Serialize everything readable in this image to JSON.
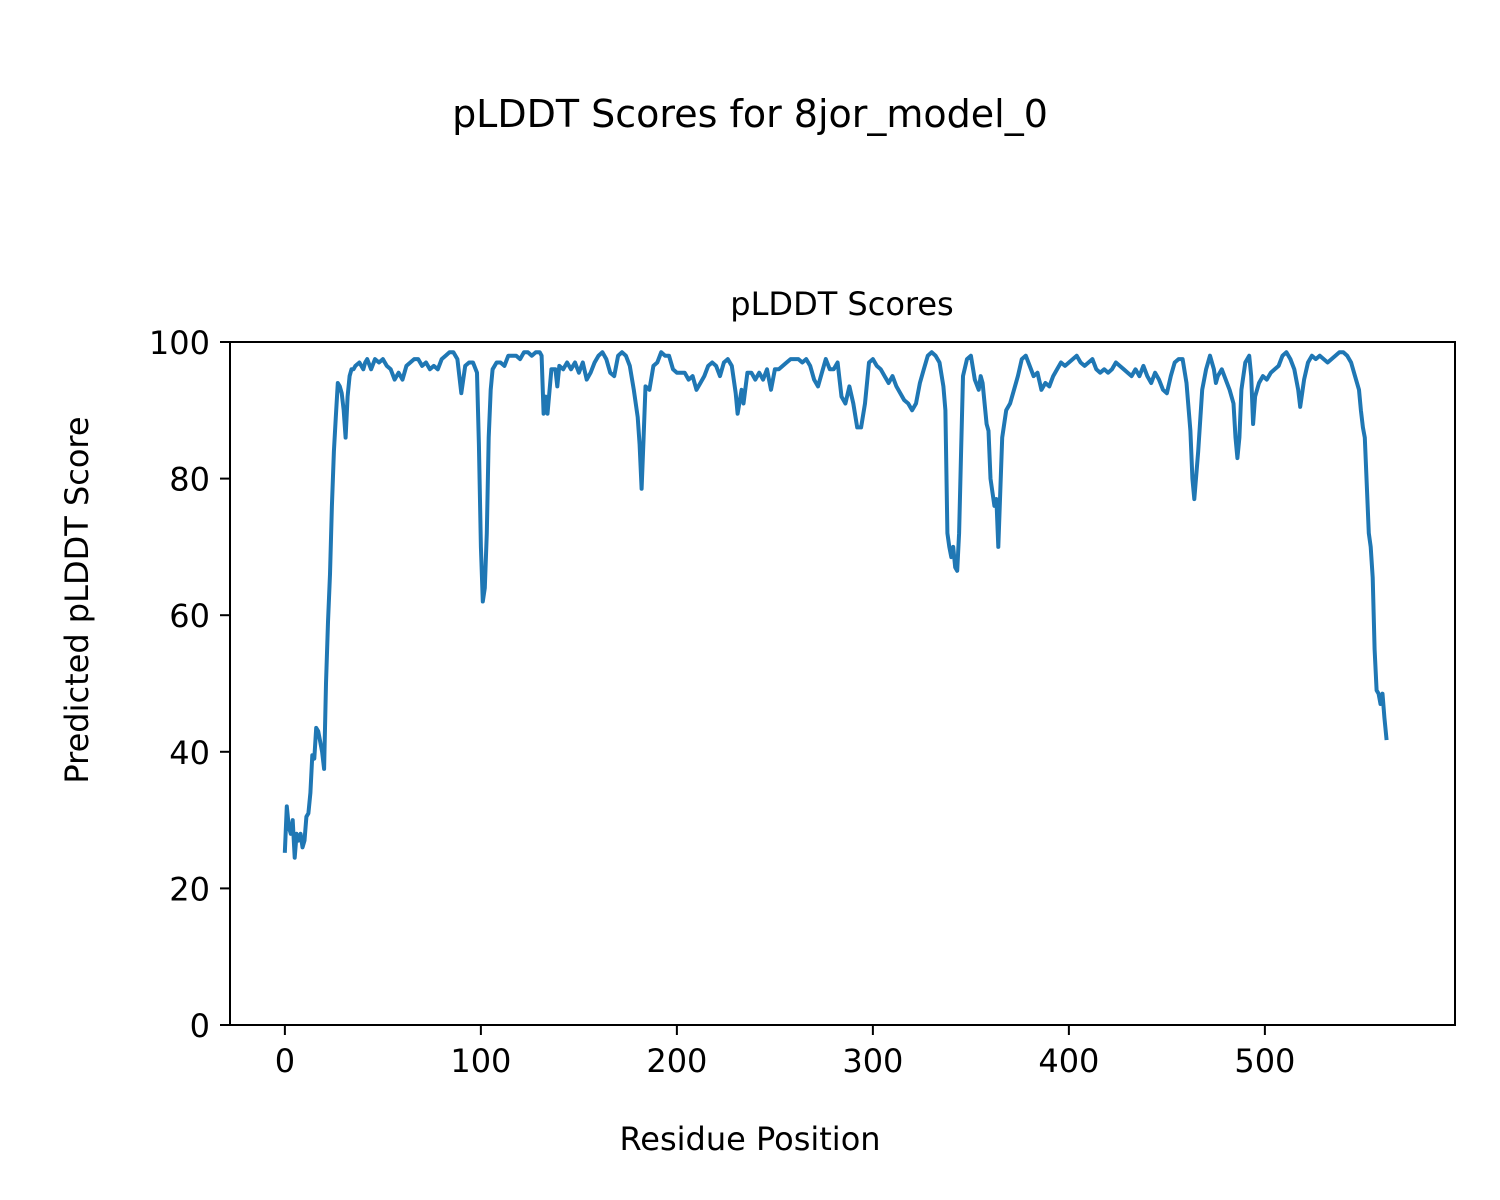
{
  "figure_title": "pLDDT Scores for 8jor_model_0",
  "chart_data": {
    "type": "line",
    "title": "pLDDT Scores",
    "xlabel": "Residue Position",
    "ylabel": "Predicted pLDDT Score",
    "xlim": [
      -28,
      597
    ],
    "ylim": [
      0,
      100
    ],
    "xticks": [
      0,
      100,
      200,
      300,
      400,
      500
    ],
    "yticks": [
      0,
      20,
      40,
      60,
      80,
      100
    ],
    "grid": false,
    "color": "#1f77b4",
    "series": [
      {
        "points": [
          [
            0,
            25.5
          ],
          [
            1,
            32
          ],
          [
            2,
            29
          ],
          [
            3,
            28
          ],
          [
            4,
            30
          ],
          [
            5,
            24.5
          ],
          [
            6,
            28
          ],
          [
            7,
            27
          ],
          [
            8,
            28
          ],
          [
            9,
            26
          ],
          [
            10,
            27
          ],
          [
            11,
            30.5
          ],
          [
            12,
            31
          ],
          [
            13,
            34
          ],
          [
            14,
            39.5
          ],
          [
            15,
            39
          ],
          [
            16,
            43.5
          ],
          [
            17,
            43
          ],
          [
            18,
            41.5
          ],
          [
            19,
            40
          ],
          [
            20,
            37.5
          ],
          [
            21,
            50
          ],
          [
            22,
            59
          ],
          [
            23,
            66
          ],
          [
            24,
            76
          ],
          [
            25,
            84
          ],
          [
            26,
            89
          ],
          [
            27,
            94
          ],
          [
            28,
            93.5
          ],
          [
            29,
            92.5
          ],
          [
            30,
            90
          ],
          [
            31,
            86
          ],
          [
            32,
            92
          ],
          [
            33,
            95
          ],
          [
            34,
            96
          ],
          [
            35,
            96
          ],
          [
            36,
            96.5
          ],
          [
            38,
            97
          ],
          [
            40,
            96
          ],
          [
            41,
            97
          ],
          [
            42,
            97.5
          ],
          [
            44,
            96
          ],
          [
            46,
            97.5
          ],
          [
            48,
            97
          ],
          [
            50,
            97.5
          ],
          [
            52,
            96.5
          ],
          [
            54,
            96
          ],
          [
            56,
            94.5
          ],
          [
            58,
            95.5
          ],
          [
            60,
            94.5
          ],
          [
            62,
            96.5
          ],
          [
            64,
            97
          ],
          [
            66,
            97.5
          ],
          [
            68,
            97.5
          ],
          [
            70,
            96.5
          ],
          [
            72,
            97
          ],
          [
            74,
            96
          ],
          [
            76,
            96.5
          ],
          [
            78,
            96
          ],
          [
            80,
            97.5
          ],
          [
            82,
            98
          ],
          [
            84,
            98.5
          ],
          [
            86,
            98.5
          ],
          [
            88,
            97.5
          ],
          [
            90,
            92.5
          ],
          [
            92,
            96.5
          ],
          [
            94,
            97
          ],
          [
            96,
            97
          ],
          [
            98,
            95.5
          ],
          [
            99,
            85
          ],
          [
            100,
            70
          ],
          [
            101,
            62
          ],
          [
            102,
            64
          ],
          [
            103,
            72
          ],
          [
            104,
            86
          ],
          [
            105,
            93
          ],
          [
            106,
            96
          ],
          [
            108,
            97
          ],
          [
            110,
            97
          ],
          [
            112,
            96.5
          ],
          [
            114,
            98
          ],
          [
            116,
            98
          ],
          [
            118,
            98
          ],
          [
            120,
            97.5
          ],
          [
            122,
            98.5
          ],
          [
            124,
            98.5
          ],
          [
            126,
            98
          ],
          [
            128,
            98.5
          ],
          [
            130,
            98.5
          ],
          [
            131,
            98
          ],
          [
            132,
            89.5
          ],
          [
            133,
            92
          ],
          [
            134,
            89.5
          ],
          [
            136,
            96
          ],
          [
            138,
            96
          ],
          [
            139,
            93.5
          ],
          [
            140,
            96.5
          ],
          [
            142,
            96
          ],
          [
            144,
            97
          ],
          [
            146,
            96
          ],
          [
            148,
            97
          ],
          [
            150,
            95.5
          ],
          [
            152,
            97
          ],
          [
            154,
            94.5
          ],
          [
            156,
            95.5
          ],
          [
            158,
            97
          ],
          [
            160,
            98
          ],
          [
            162,
            98.5
          ],
          [
            164,
            97.5
          ],
          [
            166,
            95.5
          ],
          [
            168,
            95
          ],
          [
            170,
            98
          ],
          [
            172,
            98.5
          ],
          [
            174,
            98
          ],
          [
            176,
            96.5
          ],
          [
            178,
            93
          ],
          [
            180,
            89
          ],
          [
            181,
            85
          ],
          [
            182,
            78.5
          ],
          [
            183,
            86
          ],
          [
            184,
            93.5
          ],
          [
            186,
            93
          ],
          [
            188,
            96.5
          ],
          [
            190,
            97
          ],
          [
            192,
            98.5
          ],
          [
            194,
            98
          ],
          [
            196,
            98
          ],
          [
            198,
            96
          ],
          [
            200,
            95.5
          ],
          [
            202,
            95.5
          ],
          [
            204,
            95.5
          ],
          [
            206,
            94.5
          ],
          [
            208,
            95
          ],
          [
            210,
            93
          ],
          [
            212,
            94
          ],
          [
            214,
            95
          ],
          [
            216,
            96.5
          ],
          [
            218,
            97
          ],
          [
            220,
            96.5
          ],
          [
            222,
            95
          ],
          [
            224,
            97
          ],
          [
            226,
            97.5
          ],
          [
            228,
            96.5
          ],
          [
            230,
            92.5
          ],
          [
            231,
            89.5
          ],
          [
            233,
            93
          ],
          [
            234,
            91
          ],
          [
            236,
            95.5
          ],
          [
            238,
            95.5
          ],
          [
            240,
            94.5
          ],
          [
            242,
            95.5
          ],
          [
            244,
            94.5
          ],
          [
            246,
            96
          ],
          [
            248,
            93
          ],
          [
            250,
            96
          ],
          [
            252,
            96
          ],
          [
            254,
            96.5
          ],
          [
            256,
            97
          ],
          [
            258,
            97.5
          ],
          [
            260,
            97.5
          ],
          [
            262,
            97.5
          ],
          [
            264,
            97
          ],
          [
            266,
            97.5
          ],
          [
            268,
            96.5
          ],
          [
            270,
            94.5
          ],
          [
            272,
            93.5
          ],
          [
            274,
            95.5
          ],
          [
            276,
            97.5
          ],
          [
            278,
            96
          ],
          [
            280,
            96
          ],
          [
            282,
            97
          ],
          [
            284,
            92
          ],
          [
            286,
            91
          ],
          [
            288,
            93.5
          ],
          [
            290,
            91
          ],
          [
            292,
            87.5
          ],
          [
            294,
            87.5
          ],
          [
            296,
            91
          ],
          [
            298,
            97
          ],
          [
            300,
            97.5
          ],
          [
            302,
            96.5
          ],
          [
            304,
            96
          ],
          [
            306,
            95
          ],
          [
            308,
            94
          ],
          [
            310,
            95
          ],
          [
            312,
            93.5
          ],
          [
            314,
            92.5
          ],
          [
            316,
            91.5
          ],
          [
            318,
            91
          ],
          [
            320,
            90
          ],
          [
            322,
            91
          ],
          [
            324,
            94
          ],
          [
            326,
            96
          ],
          [
            328,
            98
          ],
          [
            330,
            98.5
          ],
          [
            332,
            98
          ],
          [
            334,
            97
          ],
          [
            336,
            93.5
          ],
          [
            337,
            90
          ],
          [
            338,
            72
          ],
          [
            339,
            70
          ],
          [
            340,
            68.5
          ],
          [
            341,
            70
          ],
          [
            342,
            67
          ],
          [
            343,
            66.5
          ],
          [
            344,
            72
          ],
          [
            345,
            84
          ],
          [
            346,
            95
          ],
          [
            348,
            97.5
          ],
          [
            350,
            98
          ],
          [
            352,
            94.5
          ],
          [
            354,
            93
          ],
          [
            355,
            95
          ],
          [
            356,
            94
          ],
          [
            358,
            88
          ],
          [
            359,
            87
          ],
          [
            360,
            80
          ],
          [
            362,
            76
          ],
          [
            363,
            77
          ],
          [
            364,
            70
          ],
          [
            366,
            86
          ],
          [
            368,
            90
          ],
          [
            370,
            91
          ],
          [
            372,
            93
          ],
          [
            374,
            95
          ],
          [
            376,
            97.5
          ],
          [
            378,
            98
          ],
          [
            380,
            96.5
          ],
          [
            382,
            95
          ],
          [
            384,
            95.5
          ],
          [
            386,
            93
          ],
          [
            388,
            94
          ],
          [
            390,
            93.5
          ],
          [
            392,
            95
          ],
          [
            394,
            96
          ],
          [
            396,
            97
          ],
          [
            398,
            96.5
          ],
          [
            400,
            97
          ],
          [
            402,
            97.5
          ],
          [
            404,
            98
          ],
          [
            406,
            97
          ],
          [
            408,
            96.5
          ],
          [
            410,
            97
          ],
          [
            412,
            97.5
          ],
          [
            414,
            96
          ],
          [
            416,
            95.5
          ],
          [
            418,
            96
          ],
          [
            420,
            95.5
          ],
          [
            422,
            96
          ],
          [
            424,
            97
          ],
          [
            426,
            96.5
          ],
          [
            428,
            96
          ],
          [
            430,
            95.5
          ],
          [
            432,
            95
          ],
          [
            434,
            96
          ],
          [
            436,
            95
          ],
          [
            438,
            96.5
          ],
          [
            440,
            95
          ],
          [
            442,
            94
          ],
          [
            444,
            95.5
          ],
          [
            446,
            94.5
          ],
          [
            448,
            93
          ],
          [
            450,
            92.5
          ],
          [
            452,
            95
          ],
          [
            454,
            97
          ],
          [
            456,
            97.5
          ],
          [
            458,
            97.5
          ],
          [
            460,
            94
          ],
          [
            462,
            87
          ],
          [
            463,
            80
          ],
          [
            464,
            77
          ],
          [
            466,
            84
          ],
          [
            468,
            93
          ],
          [
            470,
            96
          ],
          [
            472,
            98
          ],
          [
            474,
            96
          ],
          [
            475,
            94
          ],
          [
            476,
            95
          ],
          [
            478,
            96
          ],
          [
            480,
            94.5
          ],
          [
            482,
            93
          ],
          [
            484,
            91
          ],
          [
            485,
            86
          ],
          [
            486,
            83
          ],
          [
            487,
            86
          ],
          [
            488,
            93
          ],
          [
            490,
            97
          ],
          [
            492,
            98
          ],
          [
            493,
            95
          ],
          [
            494,
            88
          ],
          [
            495,
            92
          ],
          [
            497,
            94
          ],
          [
            499,
            95
          ],
          [
            501,
            94.5
          ],
          [
            503,
            95.5
          ],
          [
            505,
            96
          ],
          [
            507,
            96.5
          ],
          [
            509,
            98
          ],
          [
            511,
            98.5
          ],
          [
            513,
            97.5
          ],
          [
            515,
            96
          ],
          [
            517,
            93
          ],
          [
            518,
            90.5
          ],
          [
            520,
            94.5
          ],
          [
            522,
            97
          ],
          [
            524,
            98
          ],
          [
            526,
            97.5
          ],
          [
            528,
            98
          ],
          [
            530,
            97.5
          ],
          [
            532,
            97
          ],
          [
            534,
            97.5
          ],
          [
            536,
            98
          ],
          [
            538,
            98.5
          ],
          [
            540,
            98.5
          ],
          [
            542,
            98
          ],
          [
            544,
            97
          ],
          [
            546,
            95
          ],
          [
            548,
            93
          ],
          [
            549,
            90
          ],
          [
            550,
            87.5
          ],
          [
            551,
            86
          ],
          [
            552,
            79
          ],
          [
            553,
            72
          ],
          [
            554,
            70
          ],
          [
            555,
            65.5
          ],
          [
            556,
            55
          ],
          [
            557,
            49
          ],
          [
            558,
            48.5
          ],
          [
            559,
            47
          ],
          [
            560,
            48.5
          ],
          [
            561,
            45
          ],
          [
            562,
            42
          ]
        ]
      }
    ]
  }
}
